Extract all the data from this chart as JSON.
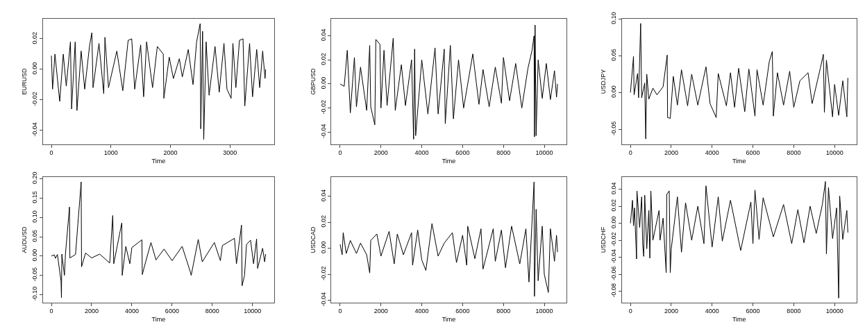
{
  "chart_data": [
    {
      "type": "line",
      "xlabel": "Time",
      "ylabel": "EURUSD",
      "xlim": [
        -144,
        3744
      ],
      "ylim": [
        -0.049,
        0.033
      ],
      "xticks": [
        0,
        1000,
        2000,
        3000
      ],
      "yticks": [
        {
          "value": -0.04,
          "label": "-0.04"
        },
        {
          "value": -0.02,
          "label": "-0.02"
        },
        {
          "value": 0,
          "label": "0.00"
        },
        {
          "value": 0.02,
          "label": "0.02"
        }
      ],
      "line_style": "solid",
      "marker": "none",
      "series": [
        {
          "color": "#000000",
          "x": [
            0,
            20,
            60,
            140,
            200,
            250,
            320,
            340,
            400,
            430,
            500,
            560,
            640,
            680,
            700,
            800,
            880,
            900,
            960,
            1100,
            1200,
            1290,
            1350,
            1400,
            1500,
            1550,
            1600,
            1700,
            1780,
            1880,
            1890,
            1980,
            2050,
            2150,
            2200,
            2300,
            2380,
            2440,
            2500,
            2510,
            2540,
            2560,
            2600,
            2650,
            2750,
            2820,
            2900,
            2950,
            3020,
            3050,
            3100,
            3160,
            3220,
            3250,
            3330,
            3380,
            3450,
            3500,
            3550,
            3590,
            3600
          ],
          "values": [
            0.009,
            -0.013,
            0.01,
            -0.021,
            0.01,
            -0.011,
            0.018,
            -0.026,
            0.018,
            -0.027,
            0.012,
            -0.013,
            0.015,
            0.024,
            -0.012,
            0.017,
            -0.016,
            0.021,
            -0.012,
            0.012,
            -0.014,
            0.019,
            0.02,
            -0.013,
            0.016,
            -0.018,
            0.018,
            -0.012,
            0.015,
            0.01,
            -0.019,
            0.008,
            -0.006,
            0.007,
            -0.005,
            0.013,
            -0.01,
            0.018,
            0.03,
            -0.039,
            0.025,
            -0.046,
            0.018,
            -0.017,
            0.015,
            -0.015,
            0.017,
            -0.013,
            -0.019,
            0.017,
            -0.012,
            0.019,
            0.02,
            -0.024,
            0.017,
            -0.018,
            0.013,
            -0.012,
            0.012,
            -0.006,
            0.0
          ]
        }
      ]
    },
    {
      "type": "line",
      "xlabel": "Time",
      "ylabel": "GBPUSD",
      "xlim": [
        -426,
        11076
      ],
      "ylim": [
        -0.05,
        0.054
      ],
      "xticks": [
        0,
        2000,
        4000,
        6000,
        8000,
        10000
      ],
      "yticks": [
        {
          "value": -0.04,
          "label": "-0.04"
        },
        {
          "value": -0.02,
          "label": "-0.02"
        },
        {
          "value": 0,
          "label": "0.00"
        },
        {
          "value": 0.02,
          "label": "0.02"
        },
        {
          "value": 0.04,
          "label": "0.04"
        }
      ],
      "line_style": "solid",
      "marker": "none",
      "series": [
        {
          "color": "#000000",
          "x": [
            0,
            200,
            350,
            500,
            700,
            800,
            1000,
            1300,
            1450,
            1500,
            1700,
            1750,
            1950,
            2000,
            2150,
            2300,
            2600,
            2700,
            3000,
            3200,
            3500,
            3600,
            3650,
            3700,
            4000,
            4300,
            4650,
            4800,
            5100,
            5150,
            5400,
            5550,
            5800,
            6050,
            6500,
            6800,
            7000,
            7300,
            7600,
            7900,
            8000,
            8300,
            8600,
            8900,
            9200,
            9400,
            9500,
            9520,
            9550,
            9600,
            9700,
            9900,
            10100,
            10300,
            10500,
            10600,
            10650
          ],
          "values": [
            0.0,
            -0.002,
            0.028,
            -0.024,
            0.022,
            -0.019,
            0.014,
            -0.022,
            0.032,
            -0.019,
            -0.034,
            0.037,
            0.033,
            -0.02,
            0.028,
            -0.018,
            0.038,
            -0.022,
            0.016,
            -0.018,
            0.02,
            -0.046,
            0.029,
            -0.043,
            0.02,
            -0.025,
            0.03,
            -0.025,
            0.029,
            -0.033,
            0.032,
            -0.029,
            0.02,
            -0.02,
            0.025,
            -0.017,
            0.012,
            -0.019,
            0.014,
            -0.016,
            0.022,
            -0.014,
            0.017,
            -0.02,
            0.013,
            0.028,
            0.04,
            -0.044,
            0.049,
            -0.043,
            0.02,
            -0.012,
            0.017,
            -0.013,
            0.011,
            -0.011,
            0.0
          ]
        }
      ]
    },
    {
      "type": "line",
      "xlabel": "Time",
      "ylabel": "USDJPY",
      "xlim": [
        -426,
        11076
      ],
      "ylim": [
        -0.07,
        0.1
      ],
      "xticks": [
        0,
        2000,
        4000,
        6000,
        8000,
        10000
      ],
      "yticks": [
        {
          "value": -0.05,
          "label": "-0.05"
        },
        {
          "value": 0,
          "label": "0.00"
        },
        {
          "value": 0.05,
          "label": "0.05"
        },
        {
          "value": 0.1,
          "label": "0.10"
        }
      ],
      "line_style": "solid",
      "marker": "none",
      "series": [
        {
          "color": "#000000",
          "x": [
            0,
            150,
            180,
            350,
            400,
            500,
            550,
            700,
            750,
            800,
            900,
            1100,
            1300,
            1600,
            1800,
            1820,
            1950,
            2100,
            2300,
            2500,
            2800,
            3000,
            3300,
            3700,
            3900,
            4200,
            4300,
            4700,
            4900,
            5100,
            5300,
            5600,
            5800,
            6100,
            6200,
            6500,
            6800,
            6950,
            7000,
            7200,
            7500,
            7800,
            8000,
            8300,
            8700,
            8900,
            9300,
            9450,
            9500,
            9600,
            9900,
            10000,
            10200,
            10400,
            10600,
            10650
          ],
          "values": [
            0.0,
            0.049,
            -0.003,
            0.026,
            -0.007,
            0.094,
            -0.007,
            0.013,
            -0.063,
            0.025,
            -0.009,
            0.006,
            -0.003,
            0.008,
            0.051,
            -0.034,
            -0.035,
            0.022,
            -0.017,
            0.031,
            -0.018,
            0.025,
            -0.017,
            0.035,
            -0.015,
            -0.034,
            0.026,
            -0.018,
            0.027,
            -0.02,
            0.033,
            -0.026,
            0.032,
            -0.032,
            0.031,
            -0.017,
            0.042,
            0.056,
            -0.032,
            0.027,
            -0.017,
            0.029,
            -0.02,
            0.016,
            0.027,
            -0.015,
            0.033,
            0.052,
            -0.027,
            0.044,
            -0.033,
            0.011,
            -0.031,
            0.016,
            -0.033,
            0.02
          ]
        }
      ]
    },
    {
      "type": "line",
      "xlabel": "Time",
      "ylabel": "AUDUSD",
      "xlim": [
        -426,
        11076
      ],
      "ylim": [
        -0.12,
        0.204
      ],
      "xticks": [
        0,
        2000,
        4000,
        6000,
        8000,
        10000
      ],
      "yticks": [
        {
          "value": -0.1,
          "label": "-0.10"
        },
        {
          "value": -0.05,
          "label": "-0.05"
        },
        {
          "value": 0,
          "label": "0.00"
        },
        {
          "value": 0.05,
          "label": "0.05"
        },
        {
          "value": 0.1,
          "label": "0.10"
        },
        {
          "value": 0.15,
          "label": "0.15"
        },
        {
          "value": 0.2,
          "label": "0.20"
        }
      ],
      "line_style": "solid",
      "marker": "none",
      "series": [
        {
          "color": "#000000",
          "x": [
            0,
            150,
            200,
            300,
            480,
            500,
            520,
            650,
            700,
            900,
            920,
            1200,
            1480,
            1500,
            1700,
            2000,
            2400,
            2900,
            3050,
            3100,
            3500,
            3520,
            3700,
            3900,
            4000,
            4500,
            4520,
            4650,
            4950,
            5200,
            5600,
            6000,
            6500,
            6900,
            6950,
            7300,
            7500,
            8100,
            8400,
            8500,
            9100,
            9200,
            9450,
            9480,
            9600,
            9700,
            9900,
            10050,
            10200,
            10250,
            10500,
            10600,
            10650
          ],
          "values": [
            0.0,
            0.003,
            -0.006,
            0.004,
            -0.065,
            -0.108,
            0.005,
            -0.05,
            0.005,
            0.127,
            -0.005,
            0.004,
            0.192,
            -0.028,
            0.008,
            -0.005,
            0.005,
            -0.018,
            0.105,
            -0.02,
            0.086,
            -0.05,
            0.025,
            -0.02,
            0.022,
            0.042,
            -0.048,
            -0.022,
            0.035,
            -0.01,
            0.018,
            -0.012,
            0.025,
            -0.04,
            -0.05,
            0.043,
            -0.015,
            0.035,
            -0.012,
            0.027,
            0.046,
            -0.02,
            0.08,
            -0.077,
            -0.05,
            0.03,
            0.041,
            -0.02,
            0.044,
            -0.032,
            0.02,
            -0.015,
            0.005
          ]
        }
      ]
    },
    {
      "type": "line",
      "xlabel": "Time",
      "ylabel": "USDCAD",
      "xlim": [
        -426,
        11076
      ],
      "ylim": [
        -0.0416,
        0.0546
      ],
      "xticks": [
        0,
        2000,
        4000,
        6000,
        8000,
        10000
      ],
      "yticks": [
        {
          "value": -0.04,
          "label": "-0.04"
        },
        {
          "value": -0.02,
          "label": "-0.02"
        },
        {
          "value": 0,
          "label": "0.00"
        },
        {
          "value": 0.02,
          "label": "0.02"
        },
        {
          "value": 0.04,
          "label": "0.04"
        }
      ],
      "line_style": "solid",
      "marker": "none",
      "series": [
        {
          "color": "#000000",
          "x": [
            0,
            100,
            150,
            300,
            500,
            800,
            1000,
            1300,
            1450,
            1500,
            1800,
            2000,
            2400,
            2650,
            2800,
            3100,
            3500,
            3550,
            3800,
            4000,
            4200,
            4500,
            4800,
            5100,
            5500,
            5700,
            6000,
            6200,
            6250,
            6600,
            6900,
            7000,
            7500,
            7600,
            7900,
            8100,
            8400,
            8800,
            9100,
            9250,
            9500,
            9520,
            9600,
            9700,
            9900,
            10000,
            10200,
            10300,
            10500,
            10600,
            10650
          ],
          "values": [
            0.003,
            -0.005,
            0.012,
            -0.004,
            0.006,
            -0.004,
            0.004,
            -0.005,
            -0.019,
            0.006,
            0.011,
            -0.006,
            0.013,
            -0.012,
            0.011,
            -0.005,
            0.012,
            -0.013,
            0.014,
            -0.009,
            -0.017,
            0.019,
            -0.006,
            0.004,
            0.012,
            -0.011,
            0.01,
            -0.013,
            0.017,
            -0.008,
            0.015,
            -0.016,
            0.015,
            -0.01,
            0.014,
            -0.015,
            0.017,
            -0.012,
            0.015,
            -0.026,
            0.051,
            -0.037,
            0.03,
            -0.025,
            0.017,
            -0.02,
            -0.034,
            0.015,
            -0.01,
            0.01,
            -0.003
          ]
        }
      ]
    },
    {
      "type": "line",
      "xlabel": "Time",
      "ylabel": "USDCHF",
      "xlim": [
        -426,
        11076
      ],
      "ylim": [
        -0.093,
        0.054
      ],
      "xticks": [
        0,
        2000,
        4000,
        6000,
        8000,
        10000
      ],
      "yticks": [
        {
          "value": -0.08,
          "label": "-0.08"
        },
        {
          "value": -0.06,
          "label": "-0.06"
        },
        {
          "value": -0.04,
          "label": "-0.04"
        },
        {
          "value": -0.02,
          "label": "-0.02"
        },
        {
          "value": 0,
          "label": "0.00"
        },
        {
          "value": 0.02,
          "label": "0.02"
        },
        {
          "value": 0.04,
          "label": "0.04"
        }
      ],
      "line_style": "solid",
      "marker": "none",
      "series": [
        {
          "color": "#000000",
          "x": [
            0,
            100,
            150,
            200,
            300,
            320,
            450,
            550,
            600,
            650,
            700,
            800,
            900,
            950,
            1000,
            1100,
            1400,
            1450,
            1600,
            1750,
            1780,
            1900,
            1950,
            2000,
            2300,
            2500,
            2700,
            3000,
            3300,
            3600,
            3700,
            4000,
            4300,
            4500,
            4900,
            5400,
            5900,
            6000,
            6100,
            6300,
            6500,
            7000,
            7500,
            7900,
            8200,
            8500,
            8800,
            9100,
            9400,
            9550,
            9600,
            9700,
            9900,
            10100,
            10200,
            10250,
            10400,
            10600,
            10650
          ],
          "values": [
            0.0,
            0.027,
            -0.003,
            0.018,
            -0.042,
            0.038,
            -0.005,
            0.031,
            -0.025,
            -0.039,
            0.033,
            -0.03,
            0.015,
            -0.041,
            0.038,
            -0.02,
            0.015,
            -0.02,
            0.006,
            -0.058,
            0.034,
            0.038,
            -0.058,
            -0.03,
            0.031,
            -0.034,
            0.024,
            -0.02,
            0.02,
            -0.024,
            0.044,
            -0.028,
            0.031,
            -0.021,
            0.027,
            -0.032,
            0.025,
            -0.024,
            0.039,
            -0.019,
            0.03,
            -0.016,
            0.022,
            -0.024,
            0.016,
            -0.023,
            0.02,
            -0.012,
            0.022,
            0.049,
            -0.036,
            0.042,
            -0.018,
            0.018,
            -0.088,
            0.032,
            -0.019,
            0.015,
            -0.011
          ]
        }
      ]
    }
  ]
}
